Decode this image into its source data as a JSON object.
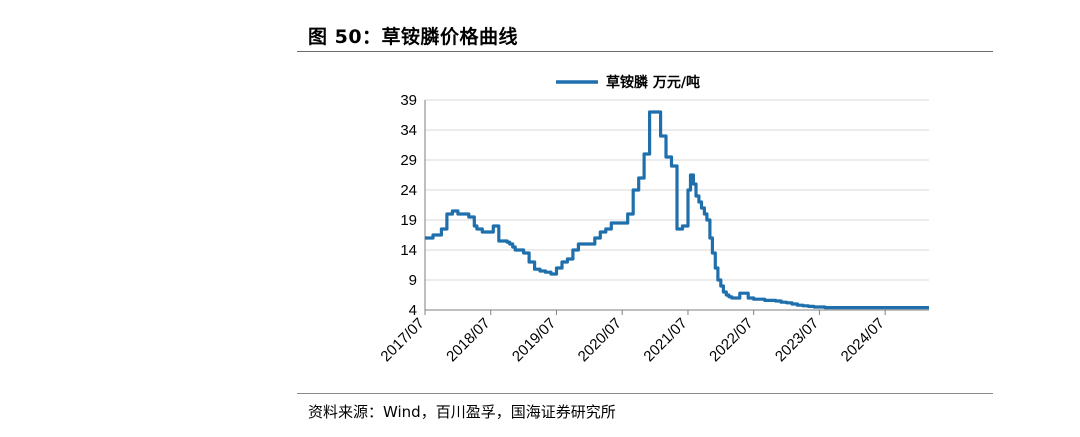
{
  "figure": {
    "title": "图 50：草铵膦价格曲线",
    "source": "资料来源：Wind，百川盈孚，国海证券研究所"
  },
  "colors": {
    "line": "#1f6fad",
    "grid": "#d9d9d9",
    "axis": "#7f7f7f"
  },
  "chart_data": {
    "type": "line",
    "title": "",
    "xlabel": "",
    "ylabel": "",
    "ylim": [
      4,
      39
    ],
    "yticks": [
      4,
      9,
      14,
      19,
      24,
      29,
      34,
      39
    ],
    "xlim": [
      "2017-07",
      "2025-03"
    ],
    "xticks": [
      "2017/07",
      "2018/07",
      "2019/07",
      "2020/07",
      "2021/07",
      "2022/07",
      "2023/07",
      "2024/07"
    ],
    "grid": true,
    "legend": "top-center",
    "series": [
      {
        "name": "草铵膦 万元/吨",
        "x": [
          "2017-07-01",
          "2017-08-15",
          "2017-10-01",
          "2017-11-01",
          "2017-12-01",
          "2018-01-01",
          "2018-02-01",
          "2018-03-01",
          "2018-04-01",
          "2018-04-15",
          "2018-05-15",
          "2018-06-15",
          "2018-07-15",
          "2018-08-15",
          "2018-09-15",
          "2018-10-01",
          "2018-10-15",
          "2018-11-01",
          "2018-11-15",
          "2019-01-01",
          "2019-02-01",
          "2019-03-01",
          "2019-04-01",
          "2019-05-01",
          "2019-06-01",
          "2019-07-01",
          "2019-08-01",
          "2019-09-01",
          "2019-10-01",
          "2019-11-01",
          "2019-12-01",
          "2020-01-01",
          "2020-02-01",
          "2020-03-01",
          "2020-04-01",
          "2020-05-01",
          "2020-06-01",
          "2020-07-01",
          "2020-08-01",
          "2020-09-01",
          "2020-10-01",
          "2020-11-01",
          "2020-12-01",
          "2021-01-01",
          "2021-02-01",
          "2021-03-01",
          "2021-04-01",
          "2021-05-01",
          "2021-06-01",
          "2021-07-01",
          "2021-07-15",
          "2021-08-01",
          "2021-08-15",
          "2021-09-01",
          "2021-09-15",
          "2021-10-01",
          "2021-10-15",
          "2021-11-01",
          "2021-11-15",
          "2021-12-01",
          "2021-12-15",
          "2022-01-01",
          "2022-01-15",
          "2022-02-01",
          "2022-02-15",
          "2022-03-01",
          "2022-03-15",
          "2022-04-01",
          "2022-04-15",
          "2022-05-01",
          "2022-06-01",
          "2022-07-01",
          "2022-08-01",
          "2022-09-01",
          "2022-10-01",
          "2022-11-01",
          "2022-12-01",
          "2023-01-01",
          "2023-02-01",
          "2023-03-01",
          "2023-04-01",
          "2023-05-01",
          "2023-06-01",
          "2023-07-01",
          "2023-08-01",
          "2023-09-01",
          "2023-10-01",
          "2023-11-01",
          "2023-12-01",
          "2024-01-01",
          "2024-03-01",
          "2024-05-01",
          "2024-07-01",
          "2024-09-01",
          "2024-11-01",
          "2025-01-01",
          "2025-03-01"
        ],
        "y": [
          16.0,
          16.5,
          17.5,
          20.0,
          20.5,
          20.0,
          20.0,
          19.5,
          18.0,
          17.5,
          17.0,
          17.0,
          18.0,
          15.5,
          15.5,
          15.3,
          15.0,
          14.5,
          14.0,
          13.5,
          12.0,
          10.8,
          10.5,
          10.3,
          10.0,
          11.0,
          12.0,
          12.5,
          14.0,
          15.0,
          15.0,
          15.0,
          16.0,
          17.0,
          17.5,
          18.5,
          18.5,
          18.5,
          20.0,
          24.0,
          26.0,
          30.0,
          37.0,
          37.0,
          33.0,
          29.5,
          28.0,
          17.5,
          18.0,
          24.0,
          26.5,
          25.0,
          23.0,
          22.0,
          21.0,
          20.0,
          19.0,
          16.0,
          13.5,
          11.0,
          9.0,
          8.0,
          7.0,
          6.5,
          6.2,
          6.0,
          6.0,
          6.0,
          6.8,
          6.8,
          6.0,
          5.8,
          5.8,
          5.6,
          5.6,
          5.5,
          5.3,
          5.2,
          5.0,
          4.8,
          4.7,
          4.6,
          4.5,
          4.5,
          4.4,
          4.4,
          4.4,
          4.4,
          4.4,
          4.4,
          4.4,
          4.4,
          4.4,
          4.4,
          4.4,
          4.4,
          4.4
        ]
      }
    ]
  }
}
